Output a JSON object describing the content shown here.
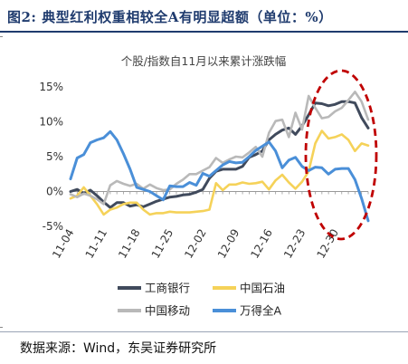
{
  "header": {
    "figure_label": "图2:",
    "title": "典型红利权重相较全A有明显超额（单位：%）"
  },
  "colors": {
    "header": "#1f3b6e",
    "icbc": "#404a5c",
    "petrochina": "#f5d259",
    "cmcc": "#b9b9b9",
    "wind_a": "#4a8fd8",
    "highlight": "#c00000"
  },
  "chart_data": {
    "type": "line",
    "title": "个股/指数自11月以来累计涨跌幅",
    "ylim": [
      -5,
      15
    ],
    "yticks": [
      -5,
      0,
      5,
      10,
      15
    ],
    "ytick_labels": [
      "-5%",
      "0%",
      "5%",
      "10%",
      "15%"
    ],
    "xtick_labels": [
      "11-04",
      "11-11",
      "11-18",
      "11-25",
      "12-02",
      "12-09",
      "12-16",
      "12-23",
      "12-30"
    ],
    "xtick_index": [
      0,
      5,
      10,
      15,
      20,
      25,
      30,
      35,
      40
    ],
    "series": [
      {
        "name": "工商银行",
        "color": "#404a5c",
        "values": [
          0.0,
          0.3,
          -0.3,
          0.2,
          -0.6,
          -1.5,
          -2.3,
          -1.6,
          -1.6,
          -2.1,
          -1.9,
          -2.2,
          -1.8,
          -1.4,
          -1.1,
          -0.8,
          -0.7,
          -0.5,
          -0.4,
          -0.1,
          0.3,
          1.9,
          2.9,
          3.2,
          3.2,
          3.2,
          3.6,
          4.9,
          5.3,
          5.8,
          7.4,
          8.2,
          8.8,
          9.1,
          8.2,
          9.4,
          11.0,
          12.7,
          12.6,
          12.3,
          12.5,
          12.9,
          12.9,
          12.7,
          10.6,
          9.1
        ]
      },
      {
        "name": "中国石油",
        "color": "#f5d259",
        "values": [
          -1.0,
          -0.6,
          0.6,
          -0.6,
          -1.8,
          -3.3,
          -2.6,
          -2.3,
          -1.8,
          -1.6,
          -1.6,
          -2.6,
          -3.3,
          -3.1,
          -3.1,
          -2.9,
          -3.0,
          -3.0,
          -3.0,
          -2.9,
          -2.8,
          -2.6,
          1.2,
          0.2,
          1.0,
          1.0,
          1.3,
          1.1,
          1.2,
          1.4,
          0.3,
          1.6,
          2.4,
          1.3,
          0.4,
          1.4,
          2.9,
          6.9,
          8.7,
          7.6,
          7.8,
          8.2,
          7.4,
          5.8,
          6.9,
          6.6
        ]
      },
      {
        "name": "中国移动",
        "color": "#b9b9b9",
        "values": [
          -0.4,
          -0.8,
          -0.3,
          -0.6,
          -1.1,
          -1.8,
          0.9,
          1.5,
          1.1,
          0.8,
          1.1,
          0.4,
          1.0,
          0.5,
          0.2,
          0.3,
          1.1,
          1.7,
          2.5,
          2.5,
          3.0,
          3.5,
          4.8,
          4.1,
          4.6,
          5.0,
          4.9,
          5.6,
          6.4,
          5.0,
          8.4,
          10.1,
          10.3,
          7.8,
          11.3,
          8.9,
          13.7,
          12.0,
          10.5,
          10.7,
          11.5,
          12.0,
          13.1,
          14.3,
          12.9,
          10.3
        ]
      },
      {
        "name": "万得全A",
        "color": "#4a8fd8",
        "values": [
          1.8,
          4.8,
          5.3,
          7.0,
          7.4,
          7.7,
          8.6,
          7.4,
          5.4,
          3.2,
          0.6,
          0.3,
          0.0,
          -0.6,
          -1.2,
          0.8,
          0.7,
          0.7,
          1.3,
          0.9,
          2.6,
          2.2,
          3.0,
          3.8,
          4.3,
          4.1,
          4.2,
          5.0,
          5.9,
          6.5,
          7.1,
          5.8,
          3.4,
          4.5,
          4.9,
          3.6,
          3.0,
          3.5,
          3.4,
          2.5,
          3.2,
          3.3,
          3.3,
          1.7,
          -1.0,
          -4.2
        ]
      }
    ],
    "legend": [
      {
        "label": "工商银行",
        "series": 0
      },
      {
        "label": "中国石油",
        "series": 1
      },
      {
        "label": "中国移动",
        "series": 2
      },
      {
        "label": "万得全A",
        "series": 3
      }
    ],
    "legend_position": "bottom",
    "grid": false,
    "annotation": "dashed ellipse highlighting late December to end"
  },
  "source": {
    "label": "数据来源：",
    "text": "Wind，东吴证券研究所"
  }
}
